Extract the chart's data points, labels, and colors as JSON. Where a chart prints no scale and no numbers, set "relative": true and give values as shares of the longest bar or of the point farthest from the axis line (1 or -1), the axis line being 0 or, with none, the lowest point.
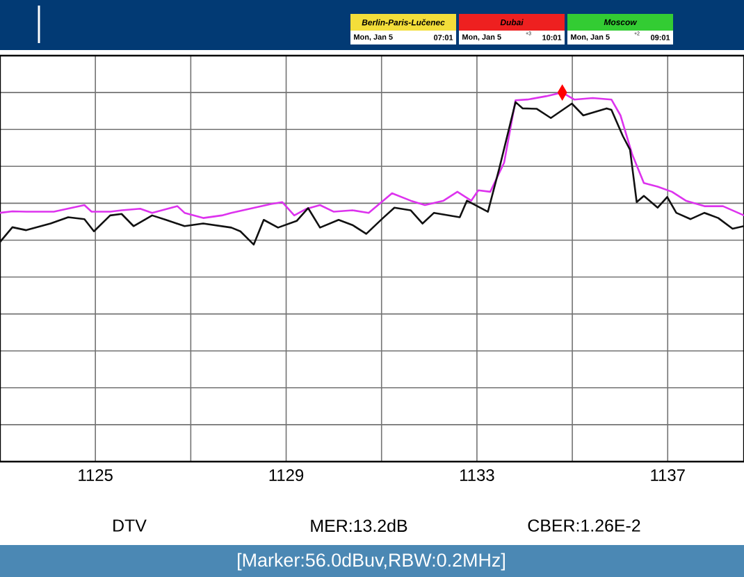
{
  "chart_data": {
    "type": "line",
    "relative": true,
    "grid": true,
    "xlim": [
      1123,
      1138.6
    ],
    "xticks": [
      1125,
      {
        "value": 1127,
        "label": null
      },
      1129,
      {
        "value": 1131,
        "label": null
      },
      1133,
      {
        "value": 1135,
        "label": null
      },
      1137
    ],
    "series": [
      {
        "color": "#dd33ee",
        "x": [
          1123.0,
          1123.26,
          1123.55,
          1124.13,
          1124.77,
          1124.92,
          1125.31,
          1125.55,
          1125.94,
          1126.19,
          1126.72,
          1126.87,
          1127.26,
          1127.65,
          1127.85,
          1128.24,
          1128.68,
          1128.92,
          1129.17,
          1129.41,
          1129.71,
          1130.0,
          1130.39,
          1130.73,
          1131.22,
          1131.61,
          1131.91,
          1132.3,
          1132.59,
          1132.88,
          1133.03,
          1133.28,
          1133.57,
          1133.81,
          1134.06,
          1134.45,
          1134.79,
          1135.04,
          1135.43,
          1135.82,
          1136.01,
          1136.26,
          1136.5,
          1136.79,
          1137.09,
          1137.38,
          1137.77,
          1138.16,
          1138.6
        ],
        "values": [
          0.674,
          0.678,
          0.677,
          0.677,
          0.695,
          0.677,
          0.677,
          0.681,
          0.685,
          0.674,
          0.692,
          0.674,
          0.66,
          0.667,
          0.674,
          0.685,
          0.698,
          0.703,
          0.667,
          0.684,
          0.695,
          0.677,
          0.681,
          0.674,
          0.727,
          0.707,
          0.695,
          0.707,
          0.731,
          0.707,
          0.735,
          0.731,
          0.81,
          0.979,
          0.981,
          0.99,
          1.0,
          0.981,
          0.985,
          0.981,
          0.938,
          0.831,
          0.755,
          0.745,
          0.731,
          0.707,
          0.692,
          0.692,
          0.667
        ]
      },
      {
        "color": "#111111",
        "x": [
          1123.0,
          1123.26,
          1123.55,
          1124.06,
          1124.43,
          1124.77,
          1124.97,
          1125.31,
          1125.55,
          1125.8,
          1126.19,
          1126.48,
          1126.87,
          1127.26,
          1127.85,
          1128.04,
          1128.32,
          1128.53,
          1128.83,
          1129.22,
          1129.46,
          1129.71,
          1130.1,
          1130.39,
          1130.68,
          1131.03,
          1131.27,
          1131.61,
          1131.86,
          1132.1,
          1132.64,
          1132.79,
          1133.23,
          1133.47,
          1133.81,
          1133.96,
          1134.25,
          1134.55,
          1134.99,
          1135.23,
          1135.72,
          1135.82,
          1136.06,
          1136.21,
          1136.35,
          1136.5,
          1136.79,
          1136.99,
          1137.18,
          1137.48,
          1137.77,
          1138.06,
          1138.36,
          1138.6
        ],
        "values": [
          0.595,
          0.635,
          0.627,
          0.645,
          0.662,
          0.657,
          0.624,
          0.667,
          0.671,
          0.638,
          0.667,
          0.655,
          0.638,
          0.645,
          0.634,
          0.624,
          0.588,
          0.655,
          0.634,
          0.652,
          0.687,
          0.634,
          0.655,
          0.641,
          0.617,
          0.66,
          0.688,
          0.681,
          0.645,
          0.674,
          0.662,
          0.707,
          0.677,
          0.795,
          0.974,
          0.957,
          0.956,
          0.931,
          0.97,
          0.938,
          0.957,
          0.953,
          0.882,
          0.845,
          0.703,
          0.72,
          0.688,
          0.717,
          0.674,
          0.657,
          0.674,
          0.66,
          0.631,
          0.638
        ]
      }
    ],
    "annotations": [
      "Berlin-Paris-Lučenec",
      "Mon, Jan 5",
      "07:01",
      "Dubai",
      "Mon, Jan 5",
      "+3",
      "10:01",
      "Moscow",
      "Mon, Jan 5",
      "+2",
      "09:01",
      "DTV",
      "MER:13.2dB",
      "CBER:1.26E-2",
      "[Marker:56.0dBuv,RBW:0.2MHz]"
    ]
  }
}
